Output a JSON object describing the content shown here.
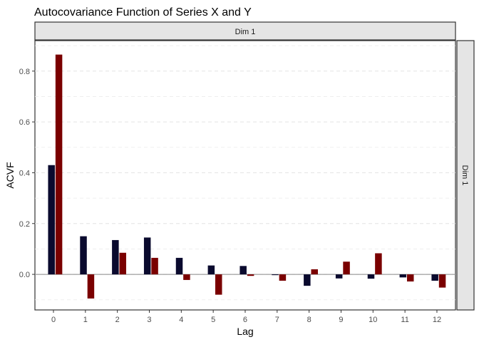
{
  "chart_data": {
    "type": "bar",
    "title": "Autocovariance Function of Series X and Y",
    "xlabel": "Lag",
    "ylabel": "ACVF",
    "facet_top": "Dim 1",
    "facet_right": "Dim 1",
    "categories": [
      "0",
      "1",
      "2",
      "3",
      "4",
      "5",
      "6",
      "7",
      "8",
      "9",
      "10",
      "11",
      "12"
    ],
    "series": [
      {
        "color": "#0a0a2e",
        "values": [
          0.43,
          0.15,
          0.135,
          0.145,
          0.065,
          0.035,
          0.033,
          -0.003,
          -0.045,
          -0.016,
          -0.017,
          -0.012,
          -0.025
        ]
      },
      {
        "color": "#7a0000",
        "values": [
          0.865,
          -0.095,
          0.085,
          0.065,
          -0.022,
          -0.08,
          -0.006,
          -0.025,
          0.02,
          0.05,
          0.083,
          -0.028,
          -0.052
        ]
      }
    ],
    "ylim": [
      -0.14,
      0.92
    ],
    "yticks": [
      0.0,
      0.2,
      0.4,
      0.6,
      0.8
    ],
    "ytick_labels": [
      "0.0",
      "0.2",
      "0.4",
      "0.6",
      "0.8"
    ],
    "grid": true
  }
}
